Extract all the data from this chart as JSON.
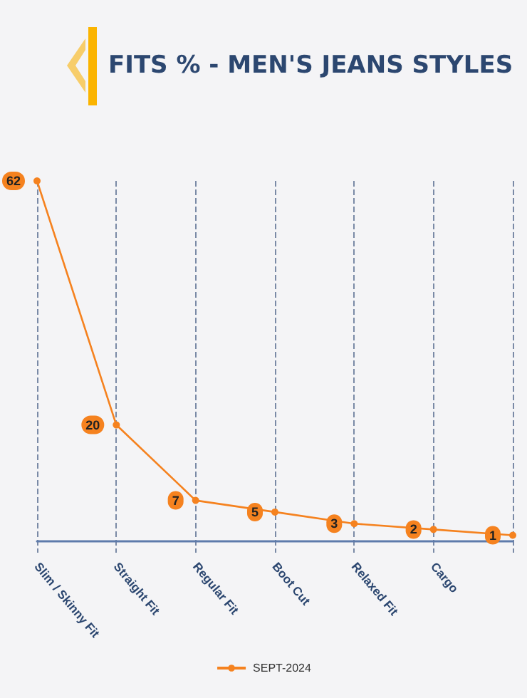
{
  "chart_data": {
    "type": "line",
    "title": "FITS % - MEN'S JEANS STYLES",
    "categories": [
      "Slim / Skinny Fit",
      "Straight Fit",
      "Regular Fit",
      "Boot Cut",
      "Relaxed Fit",
      "Cargo",
      null
    ],
    "series": [
      {
        "name": "SEPT-2024",
        "color": "#f5821f",
        "values": [
          62,
          20,
          7,
          5,
          3,
          2,
          1
        ]
      }
    ],
    "ylim": [
      -2,
      62
    ],
    "tick_labels": "x",
    "grid": "x",
    "legend": "bottom",
    "marker": "circle",
    "line_style": "solid",
    "data_labels": true
  }
}
